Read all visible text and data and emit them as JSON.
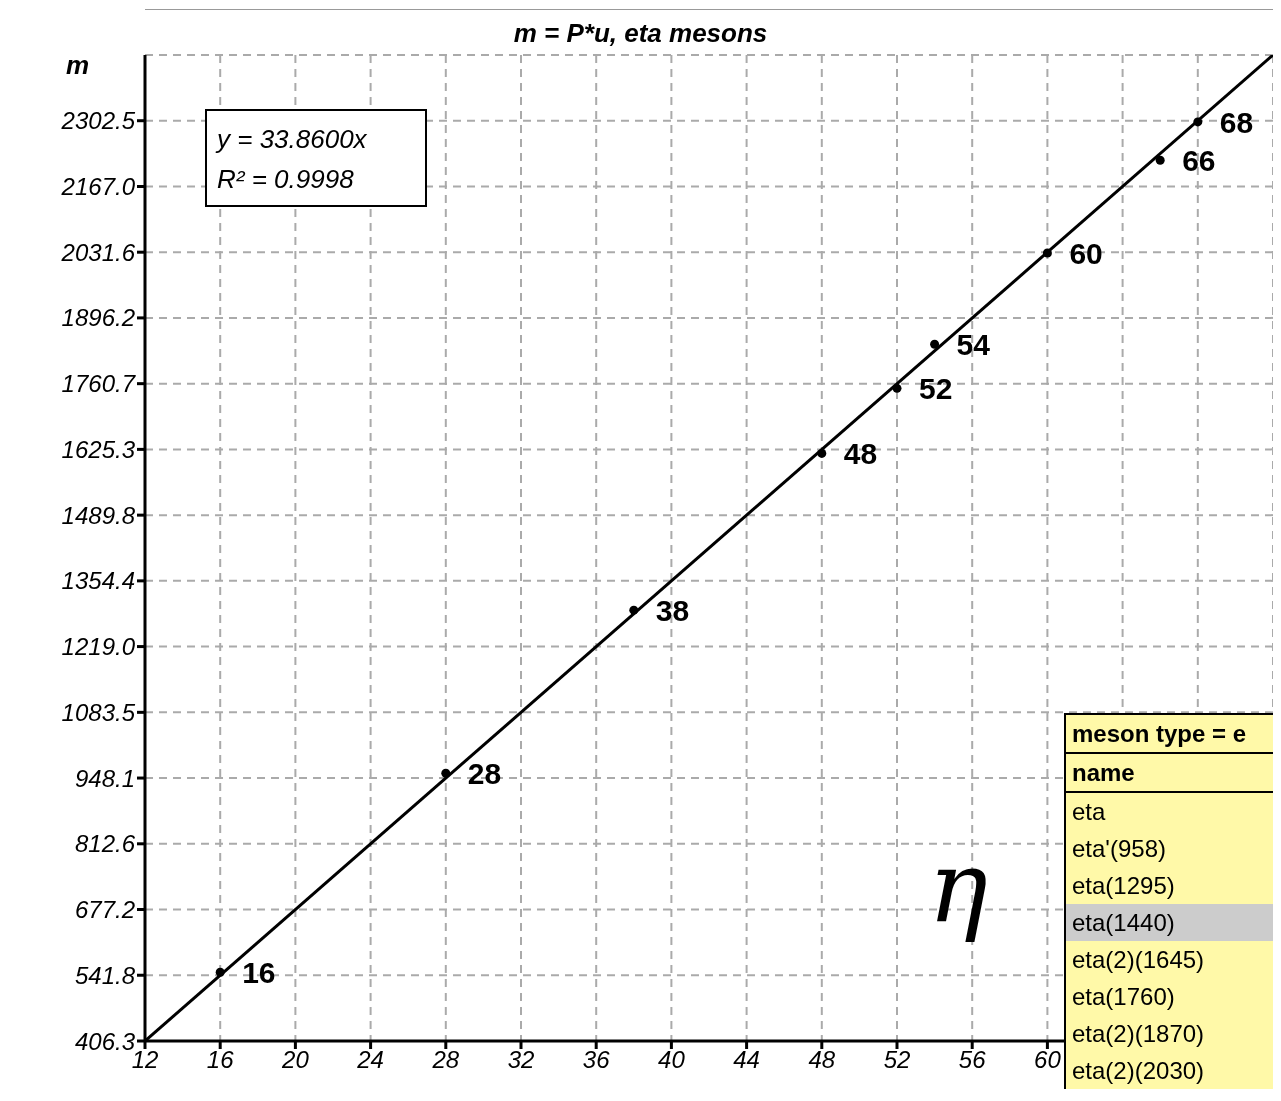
{
  "chart_data": {
    "type": "scatter",
    "title": "m = P*u, eta mesons",
    "ylabel": "m",
    "xlim": [
      12,
      72
    ],
    "ylim": [
      406.3,
      2437.9
    ],
    "xticks": [
      12,
      16,
      20,
      24,
      28,
      32,
      36,
      40,
      44,
      48,
      52,
      56,
      60,
      {
        "value": 64,
        "label": null
      },
      {
        "value": 68,
        "label": null
      }
    ],
    "yticks": [
      {
        "value": 406.3,
        "label": "406.3"
      },
      {
        "value": 541.8,
        "label": "541.8"
      },
      {
        "value": 677.2,
        "label": "677.2"
      },
      {
        "value": 812.6,
        "label": "812.6"
      },
      {
        "value": 948.1,
        "label": "948.1"
      },
      {
        "value": 1083.5,
        "label": "1083.5"
      },
      {
        "value": 1219.0,
        "label": "1219.0"
      },
      {
        "value": 1354.4,
        "label": "1354.4"
      },
      {
        "value": 1489.8,
        "label": "1489.8"
      },
      {
        "value": 1625.3,
        "label": "1625.3"
      },
      {
        "value": 1760.7,
        "label": "1760.7"
      },
      {
        "value": 1896.2,
        "label": "1896.2"
      },
      {
        "value": 2031.6,
        "label": "2031.6"
      },
      {
        "value": 2167.0,
        "label": "2167.0"
      },
      {
        "value": 2302.5,
        "label": "2302.5"
      }
    ],
    "grid": true,
    "marker": "circle",
    "series": [
      {
        "type": "scatter",
        "color": "#000000",
        "x": [
          16,
          28,
          38,
          48,
          52,
          54,
          60,
          66,
          68
        ],
        "values": [
          548,
          958,
          1294,
          1617,
          1751,
          1842,
          2030,
          2221,
          2300
        ]
      },
      {
        "type": "line",
        "color": "#000000",
        "marker": "none",
        "line_style": "solid",
        "x": [
          12,
          72
        ],
        "values": [
          406.3,
          2437.9
        ]
      }
    ],
    "annotations": [
      "y = 33.8600x",
      "R² = 0.9998",
      "η",
      "meson type = e",
      "name",
      "eta",
      "eta'(958)",
      "eta(1295)",
      "eta(1440)",
      "eta(2)(1645)",
      "eta(1760)",
      "eta(2)(1870)",
      "eta(2)(2030)",
      {
        "text": "16",
        "x": 16,
        "y": 548
      },
      {
        "text": "28",
        "x": 28,
        "y": 958
      },
      {
        "text": "38",
        "x": 38,
        "y": 1294
      },
      {
        "text": "48",
        "x": 48,
        "y": 1617
      },
      {
        "text": "52",
        "x": 52,
        "y": 1751
      },
      {
        "text": "54",
        "x": 54,
        "y": 1842
      },
      {
        "text": "60",
        "x": 60,
        "y": 2030
      },
      {
        "text": "66",
        "x": 66,
        "y": 2221
      },
      {
        "text": "68",
        "x": 68,
        "y": 2300
      }
    ]
  }
}
